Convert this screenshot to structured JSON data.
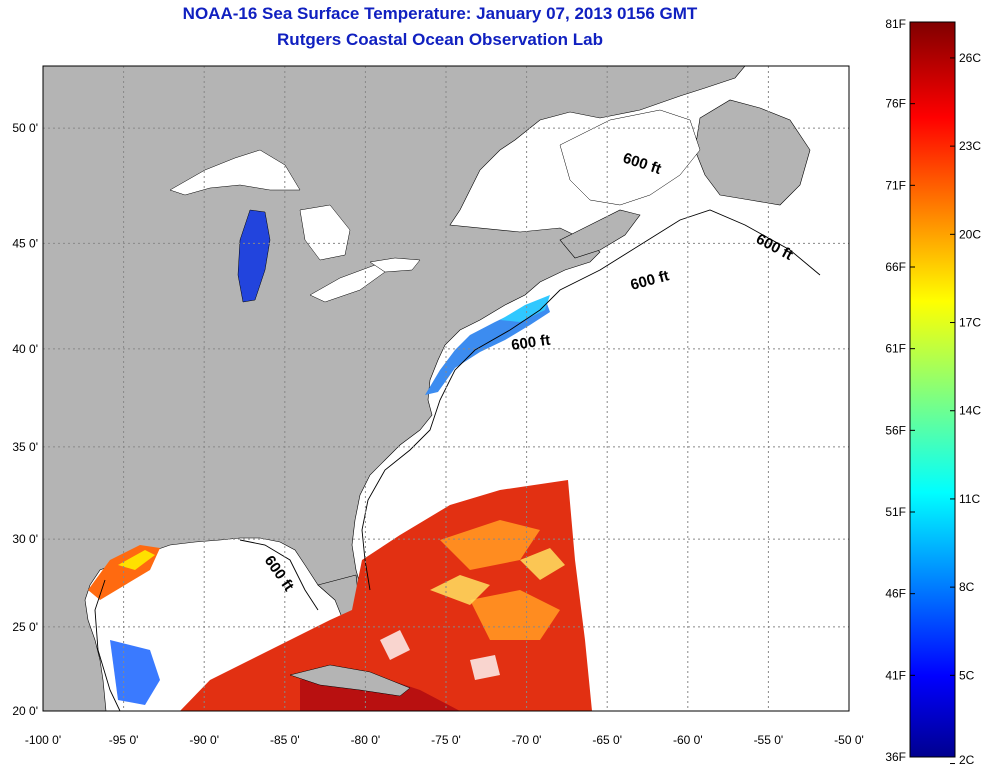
{
  "header": {
    "title": "NOAA-16 Sea Surface Temperature:  January 07, 2013 0156 GMT",
    "subtitle": "Rutgers Coastal Ocean Observation Lab"
  },
  "map": {
    "lon_range": [
      -100,
      -50
    ],
    "lat_range": [
      20,
      52.5
    ],
    "lon_ticks": [
      "-100 0'",
      "-95 0'",
      "-90 0'",
      "-85 0'",
      "-80 0'",
      "-75 0'",
      "-70 0'",
      "-65 0'",
      "-60 0'",
      "-55 0'",
      "-50 0'"
    ],
    "lat_ticks": [
      "20 0'",
      "25 0'",
      "30 0'",
      "35 0'",
      "40 0'",
      "45 0'",
      "50 0'"
    ],
    "contour_label": "600 ft",
    "grid": "dotted",
    "colors": {
      "land": "#b4b4b4",
      "water_no_data": "#ffffff",
      "grid": "#888888"
    }
  },
  "colorbar": {
    "fahrenheit": [
      "81F",
      "76F",
      "71F",
      "66F",
      "61F",
      "56F",
      "51F",
      "46F",
      "41F",
      "36F"
    ],
    "celsius": [
      "26C",
      "23C",
      "20C",
      "17C",
      "14C",
      "11C",
      "8C",
      "5C",
      "2C"
    ],
    "range_f": [
      36,
      81
    ],
    "colormap": "jet"
  }
}
